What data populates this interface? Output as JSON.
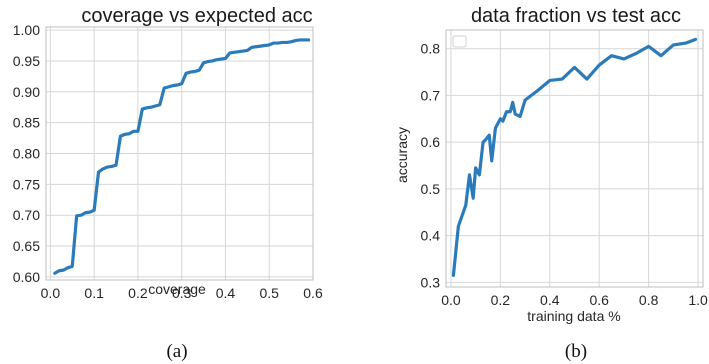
{
  "chart_data": [
    {
      "type": "line",
      "title": "coverage vs expected acc",
      "xlabel": "coverage",
      "ylabel": "",
      "xlim": [
        -0.01,
        0.6
      ],
      "ylim": [
        0.595,
        1.005
      ],
      "xticks": [
        0.0,
        0.1,
        0.2,
        0.3,
        0.4,
        0.5,
        0.6
      ],
      "xtick_labels": [
        "0.0",
        "0.1",
        "0.2",
        "0.3",
        "0.4",
        "0.5",
        "0.6"
      ],
      "yticks": [
        0.6,
        0.65,
        0.7,
        0.75,
        0.8,
        0.85,
        0.9,
        0.95,
        1.0
      ],
      "ytick_labels": [
        "0.60",
        "0.65",
        "0.70",
        "0.75",
        "0.80",
        "0.85",
        "0.90",
        "0.95",
        "1.00"
      ],
      "grid": true,
      "caption": "(a)",
      "series": [
        {
          "color": "#2b7bba",
          "x": [
            0.01,
            0.02,
            0.03,
            0.04,
            0.05,
            0.06,
            0.07,
            0.08,
            0.09,
            0.1,
            0.11,
            0.12,
            0.13,
            0.14,
            0.15,
            0.16,
            0.17,
            0.18,
            0.19,
            0.2,
            0.21,
            0.22,
            0.23,
            0.24,
            0.25,
            0.26,
            0.27,
            0.28,
            0.29,
            0.3,
            0.31,
            0.32,
            0.33,
            0.34,
            0.35,
            0.36,
            0.37,
            0.38,
            0.39,
            0.4,
            0.41,
            0.42,
            0.43,
            0.44,
            0.45,
            0.46,
            0.47,
            0.48,
            0.49,
            0.5,
            0.51,
            0.52,
            0.53,
            0.54,
            0.55,
            0.56,
            0.57,
            0.58,
            0.59
          ],
          "y": [
            0.606,
            0.61,
            0.611,
            0.615,
            0.617,
            0.699,
            0.7,
            0.704,
            0.705,
            0.708,
            0.77,
            0.775,
            0.778,
            0.779,
            0.781,
            0.828,
            0.831,
            0.832,
            0.836,
            0.836,
            0.872,
            0.874,
            0.875,
            0.877,
            0.879,
            0.906,
            0.908,
            0.91,
            0.911,
            0.913,
            0.93,
            0.932,
            0.933,
            0.935,
            0.947,
            0.949,
            0.95,
            0.952,
            0.953,
            0.954,
            0.963,
            0.964,
            0.965,
            0.966,
            0.967,
            0.972,
            0.973,
            0.974,
            0.975,
            0.976,
            0.979,
            0.979,
            0.98,
            0.98,
            0.981,
            0.983,
            0.984,
            0.984,
            0.984
          ]
        }
      ]
    },
    {
      "type": "line",
      "title": "data fraction vs test acc",
      "xlabel": "training data %",
      "ylabel": "accuracy",
      "xlim": [
        -0.02,
        1.02
      ],
      "ylim": [
        0.29,
        0.84
      ],
      "xticks": [
        0.0,
        0.2,
        0.4,
        0.6,
        0.8,
        1.0
      ],
      "xtick_labels": [
        "0.0",
        "0.2",
        "0.4",
        "0.6",
        "0.8",
        "1.0"
      ],
      "yticks": [
        0.3,
        0.4,
        0.5,
        0.6,
        0.7,
        0.8
      ],
      "ytick_labels": [
        "0.3",
        "0.4",
        "0.5",
        "0.6",
        "0.7",
        "0.8"
      ],
      "grid": true,
      "legend": "top-left",
      "caption": "(b)",
      "series": [
        {
          "color": "#2b7bba",
          "x": [
            0.01,
            0.03,
            0.06,
            0.075,
            0.09,
            0.1,
            0.115,
            0.13,
            0.14,
            0.155,
            0.165,
            0.18,
            0.2,
            0.21,
            0.225,
            0.24,
            0.25,
            0.26,
            0.28,
            0.3,
            0.35,
            0.4,
            0.45,
            0.5,
            0.55,
            0.6,
            0.65,
            0.7,
            0.75,
            0.8,
            0.85,
            0.9,
            0.95,
            0.99
          ],
          "y": [
            0.315,
            0.42,
            0.465,
            0.53,
            0.48,
            0.545,
            0.53,
            0.6,
            0.605,
            0.615,
            0.56,
            0.63,
            0.65,
            0.645,
            0.665,
            0.665,
            0.685,
            0.66,
            0.655,
            0.69,
            0.71,
            0.732,
            0.735,
            0.76,
            0.735,
            0.765,
            0.785,
            0.778,
            0.79,
            0.805,
            0.785,
            0.808,
            0.812,
            0.82
          ]
        }
      ]
    }
  ]
}
